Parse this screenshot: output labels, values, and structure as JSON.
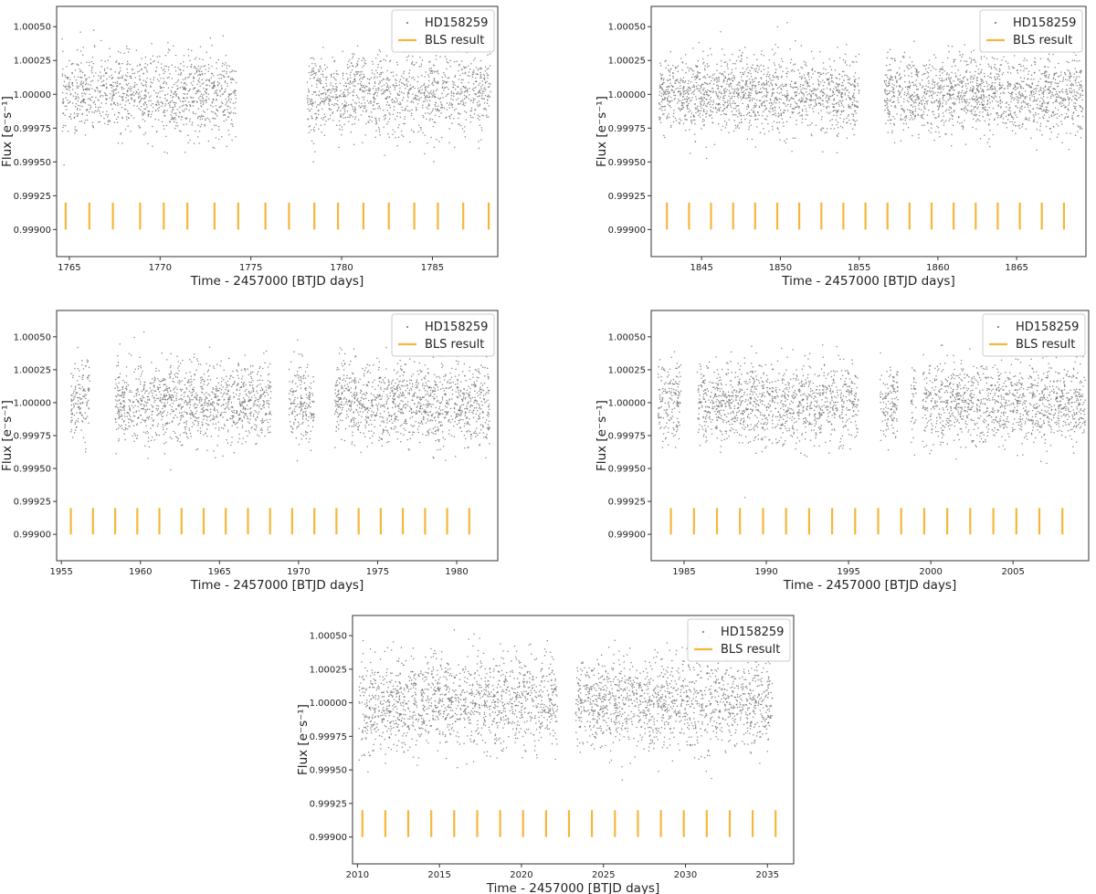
{
  "figure": {
    "colors": {
      "points": "#6b6b6b",
      "bls": "#f5b73b",
      "frame": "#333333",
      "legend_border": "#cccccc"
    }
  },
  "chart_data": [
    {
      "id": "panel-1",
      "type": "scatter",
      "legend": {
        "entries": [
          "HD158259",
          "BLS result"
        ],
        "placement": "top-right"
      },
      "xlabel": "Time - 2457000 [BTJD days]",
      "ylabel": "Flux [e⁻s⁻¹]",
      "xlim": [
        1764.3,
        1788.6
      ],
      "ylim": [
        0.9988,
        1.00065
      ],
      "xticks": [
        1765,
        1770,
        1775,
        1780,
        1785
      ],
      "xtick_labels": [
        "1765",
        "1770",
        "1775",
        "1780",
        "1785"
      ],
      "yticks": [
        0.999,
        0.99925,
        0.9995,
        0.99975,
        1.0,
        1.00025,
        1.0005
      ],
      "ytick_labels": [
        "0.99900",
        "0.99925",
        "0.99950",
        "0.99975",
        "1.00000",
        "1.00025",
        "1.00050"
      ],
      "series": [
        {
          "name": "HD158259",
          "kind": "scatter",
          "segments": [
            [
              1764.6,
              1774.2
            ],
            [
              1778.1,
              1788.2
            ]
          ],
          "mean": 1.0,
          "scatter": 0.00015
        },
        {
          "name": "BLS result",
          "kind": "transit_markers",
          "transit_times": [
            1764.8,
            1766.1,
            1767.4,
            1768.9,
            1770.2,
            1771.5,
            1773.0,
            1774.3,
            1775.8,
            1777.1,
            1778.5,
            1779.8,
            1781.2,
            1782.6,
            1784.0,
            1785.3,
            1786.7,
            1788.1
          ],
          "flux_range": [
            0.999,
            0.9992
          ]
        }
      ]
    },
    {
      "id": "panel-2",
      "type": "scatter",
      "legend": {
        "entries": [
          "HD158259",
          "BLS result"
        ],
        "placement": "top-right"
      },
      "xlabel": "Time - 2457000 [BTJD days]",
      "ylabel": "Flux [e⁻s⁻¹]",
      "xlim": [
        1841.8,
        1869.4
      ],
      "ylim": [
        0.9988,
        1.00065
      ],
      "xticks": [
        1845,
        1850,
        1855,
        1860,
        1865
      ],
      "xtick_labels": [
        "1845",
        "1850",
        "1855",
        "1860",
        "1865"
      ],
      "yticks": [
        0.999,
        0.99925,
        0.9995,
        0.99975,
        1.0,
        1.00025,
        1.0005
      ],
      "ytick_labels": [
        "0.99900",
        "0.99925",
        "0.99950",
        "0.99975",
        "1.00000",
        "1.00025",
        "1.00050"
      ],
      "series": [
        {
          "name": "HD158259",
          "kind": "scatter",
          "segments": [
            [
              1842.3,
              1855.0
            ],
            [
              1856.6,
              1869.2
            ]
          ],
          "mean": 1.0,
          "scatter": 0.00014
        },
        {
          "name": "BLS result",
          "kind": "transit_markers",
          "transit_times": [
            1842.8,
            1844.2,
            1845.6,
            1847.0,
            1848.4,
            1849.8,
            1851.2,
            1852.6,
            1854.0,
            1855.4,
            1856.8,
            1858.2,
            1859.6,
            1861.0,
            1862.4,
            1863.8,
            1865.2,
            1866.6,
            1868.0
          ],
          "flux_range": [
            0.999,
            0.9992
          ]
        }
      ]
    },
    {
      "id": "panel-3",
      "type": "scatter",
      "legend": {
        "entries": [
          "HD158259",
          "BLS result"
        ],
        "placement": "top-right"
      },
      "xlabel": "Time - 2457000 [BTJD days]",
      "ylabel": "Flux [e⁻s⁻¹]",
      "xlim": [
        1954.7,
        1982.6
      ],
      "ylim": [
        0.9988,
        1.0007
      ],
      "xticks": [
        1955,
        1960,
        1965,
        1970,
        1975,
        1980
      ],
      "xtick_labels": [
        "1955",
        "1960",
        "1965",
        "1970",
        "1975",
        "1980"
      ],
      "yticks": [
        0.999,
        0.99925,
        0.9995,
        0.99975,
        1.0,
        1.00025,
        1.0005
      ],
      "ytick_labels": [
        "0.99900",
        "0.99925",
        "0.99950",
        "0.99975",
        "1.00000",
        "1.00025",
        "1.00050"
      ],
      "series": [
        {
          "name": "HD158259",
          "kind": "scatter",
          "segments": [
            [
              1955.6,
              1956.8
            ],
            [
              1958.4,
              1968.3
            ],
            [
              1969.4,
              1971.0
            ],
            [
              1972.3,
              1982.1
            ]
          ],
          "mean": 1.0,
          "scatter": 0.00015
        },
        {
          "name": "BLS result",
          "kind": "transit_markers",
          "transit_times": [
            1955.6,
            1957.0,
            1958.4,
            1959.8,
            1961.2,
            1962.6,
            1964.0,
            1965.4,
            1966.8,
            1968.2,
            1969.6,
            1971.0,
            1972.4,
            1973.8,
            1975.2,
            1976.6,
            1978.0,
            1979.4,
            1980.8
          ],
          "flux_range": [
            0.999,
            0.9992
          ]
        }
      ]
    },
    {
      "id": "panel-4",
      "type": "scatter",
      "legend": {
        "entries": [
          "HD158259",
          "BLS result"
        ],
        "placement": "top-right"
      },
      "xlabel": "Time - 2457000 [BTJD days]",
      "ylabel": "Flux [e⁻s⁻¹]",
      "xlim": [
        1983.0,
        2009.6
      ],
      "ylim": [
        0.9988,
        1.0007
      ],
      "xticks": [
        1985,
        1990,
        1995,
        2000,
        2005
      ],
      "xtick_labels": [
        "1985",
        "1990",
        "1995",
        "2000",
        "2005"
      ],
      "yticks": [
        0.999,
        0.99925,
        0.9995,
        0.99975,
        1.0,
        1.00025,
        1.0005
      ],
      "ytick_labels": [
        "0.99900",
        "0.99925",
        "0.99950",
        "0.99975",
        "1.00000",
        "1.00025",
        "1.00050"
      ],
      "series": [
        {
          "name": "HD158259",
          "kind": "scatter",
          "segments": [
            [
              1983.4,
              1984.8
            ],
            [
              1985.8,
              1995.6
            ],
            [
              1996.9,
              1998.0
            ],
            [
              1998.8,
              1999.1
            ],
            [
              1999.5,
              2009.4
            ]
          ],
          "mean": 1.0,
          "scatter": 0.00015
        },
        {
          "name": "BLS result",
          "kind": "transit_markers",
          "transit_times": [
            1984.2,
            1985.6,
            1987.0,
            1988.4,
            1989.8,
            1991.2,
            1992.6,
            1994.0,
            1995.4,
            1996.8,
            1998.2,
            1999.6,
            2001.0,
            2002.4,
            2003.8,
            2005.2,
            2006.6,
            2008.0
          ],
          "flux_range": [
            0.999,
            0.9992
          ]
        }
      ]
    },
    {
      "id": "panel-5",
      "type": "scatter",
      "legend": {
        "entries": [
          "HD158259",
          "BLS result"
        ],
        "placement": "top-right"
      },
      "xlabel": "Time - 2457000 [BTJD days]",
      "ylabel": "Flux [e⁻s⁻¹]",
      "xlim": [
        2009.7,
        2036.6
      ],
      "ylim": [
        0.9988,
        1.00065
      ],
      "xticks": [
        2010,
        2015,
        2020,
        2025,
        2030,
        2035
      ],
      "xtick_labels": [
        "2010",
        "2015",
        "2020",
        "2025",
        "2030",
        "2035"
      ],
      "yticks": [
        0.999,
        0.99925,
        0.9995,
        0.99975,
        1.0,
        1.00025,
        1.0005
      ],
      "ytick_labels": [
        "0.99900",
        "0.99925",
        "0.99950",
        "0.99975",
        "1.00000",
        "1.00025",
        "1.00050"
      ],
      "series": [
        {
          "name": "HD158259",
          "kind": "scatter",
          "segments": [
            [
              2010.1,
              2022.2
            ],
            [
              2023.3,
              2035.3
            ]
          ],
          "mean": 1.0,
          "scatter": 0.00017
        },
        {
          "name": "BLS result",
          "kind": "transit_markers",
          "transit_times": [
            2010.3,
            2011.7,
            2013.1,
            2014.5,
            2015.9,
            2017.3,
            2018.7,
            2020.1,
            2021.5,
            2022.9,
            2024.3,
            2025.7,
            2027.1,
            2028.5,
            2029.9,
            2031.3,
            2032.7,
            2034.1,
            2035.5
          ],
          "flux_range": [
            0.999,
            0.9992
          ]
        }
      ]
    }
  ]
}
